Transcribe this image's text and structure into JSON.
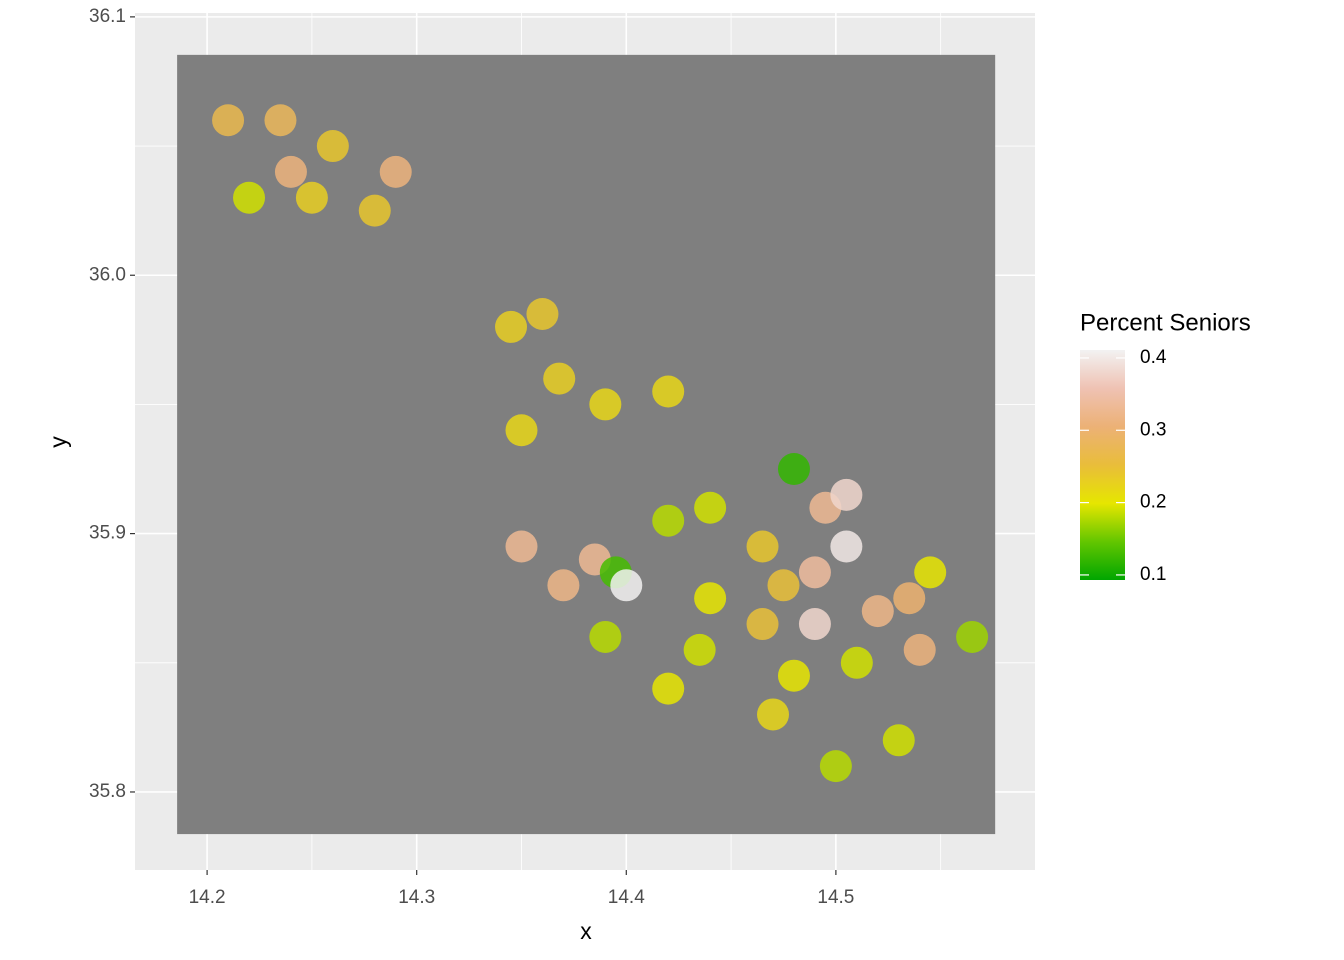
{
  "chart_data": {
    "type": "raster",
    "x_label": "x",
    "y_label": "y",
    "xlim": [
      14.1656,
      14.595
    ],
    "ylim": [
      35.7698,
      36.1015
    ],
    "xticks": [
      14.2,
      14.3,
      14.4,
      14.5
    ],
    "yticks": [
      35.8,
      {
        "value": 36,
        "label": "36.0"
      },
      35.9,
      36.1
    ],
    "raster_extent": {
      "xlim": [
        14.1857,
        14.576
      ],
      "ylim": [
        35.7837,
        36.0853
      ]
    },
    "background_color": "#7f7f7f",
    "grid": true,
    "legend": {
      "title": "Percent Seniors",
      "limits": [
        0.093,
        0.411
      ],
      "ticks": [
        0.1,
        0.2,
        0.3,
        0.4
      ],
      "colors": [
        "#00a600",
        "#63c600",
        "#e6e600",
        "#e9bd3a",
        "#ecb176",
        "#efc2b3",
        "#f2f2f2"
      ],
      "position": "right"
    },
    "cells": {
      "x": [
        14.24,
        14.26,
        14.29,
        14.21,
        14.25,
        14.28,
        14.235,
        14.22,
        14.345,
        14.368,
        14.36,
        14.39,
        14.42,
        14.35,
        14.48,
        14.44,
        14.42,
        14.495,
        14.505,
        14.465,
        14.49,
        14.505,
        14.475,
        14.385,
        14.395,
        14.4,
        14.35,
        14.37,
        14.49,
        14.52,
        14.535,
        14.545,
        14.54,
        14.565,
        14.44,
        14.39,
        14.435,
        14.47,
        14.51,
        14.48,
        14.5,
        14.53,
        14.42,
        14.465
      ],
      "y": [
        36.04,
        36.05,
        36.04,
        36.06,
        36.03,
        36.025,
        36.06,
        36.03,
        35.98,
        35.96,
        35.985,
        35.95,
        35.955,
        35.94,
        35.925,
        35.91,
        35.905,
        35.91,
        35.915,
        35.895,
        35.885,
        35.895,
        35.88,
        35.89,
        35.885,
        35.88,
        35.895,
        35.88,
        35.865,
        35.87,
        35.875,
        35.885,
        35.855,
        35.86,
        35.875,
        35.86,
        35.855,
        35.83,
        35.85,
        35.845,
        35.81,
        35.82,
        35.84,
        35.865
      ],
      "values": [
        0.31,
        0.24,
        0.31,
        0.27,
        0.23,
        0.24,
        0.28,
        0.19,
        0.23,
        0.23,
        0.24,
        0.22,
        0.22,
        0.22,
        0.12,
        0.19,
        0.18,
        0.33,
        0.38,
        0.24,
        0.34,
        0.4,
        0.25,
        0.33,
        0.13,
        0.41,
        0.33,
        0.32,
        0.38,
        0.32,
        0.3,
        0.2,
        0.31,
        0.17,
        0.2,
        0.18,
        0.19,
        0.22,
        0.19,
        0.2,
        0.18,
        0.19,
        0.2,
        0.25
      ]
    }
  }
}
